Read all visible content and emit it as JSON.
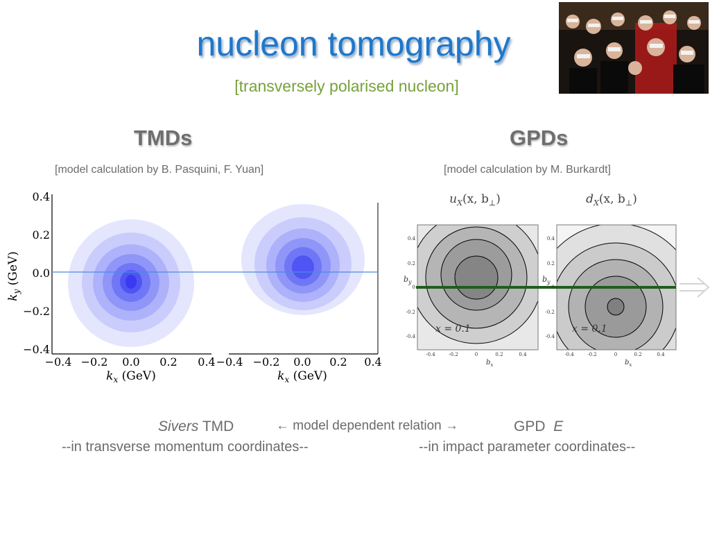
{
  "slide": {
    "title": "nucleon tomography",
    "subtitle": "[transversely polarised nucleon]"
  },
  "tmd": {
    "heading": "TMDs",
    "caption": "[model calculation by B. Pasquini, F. Yuan]",
    "ylabel_k": "k",
    "ylabel_sub": "y",
    "ylabel_unit": " (GeV)",
    "xlabel_k": "k",
    "xlabel_sub": "x",
    "xlabel_unit": " (GeV)",
    "yticks": [
      "0.4",
      "0.2",
      "0.0",
      "−0.2",
      "−0.4"
    ],
    "xticks": [
      "−0.4",
      "−0.2",
      "0.0",
      "0.2",
      "0.4"
    ]
  },
  "gpd": {
    "heading": "GPDs",
    "caption": "[model calculation by M. Burkardt]",
    "panel_u_label": "u",
    "panel_u_sub": "X",
    "panel_u_arg": "(x, b",
    "panel_d_label": "d",
    "panel_d_sub": "X",
    "panel_d_arg": "(x, b",
    "perp": "⊥",
    "close": ")",
    "x_annot": "x = 0.1",
    "by_label": "b",
    "by_sub": "y",
    "bx_label": "b",
    "bx_sub": "x",
    "yticks": [
      "0.4",
      "0.2",
      "0",
      "-0.2",
      "-0.4"
    ],
    "xticks": [
      "-0.4",
      "-0.2",
      "0",
      "0.2",
      "0.4"
    ]
  },
  "bottom": {
    "sivers_italic": "Sivers",
    "sivers_rest": " TMD",
    "relation": "← model dependent relation →",
    "gpd_label": "GPD  ",
    "gpd_E": "E",
    "tmd_coords": "--in transverse momentum coordinates--",
    "gpd_coords": "--in impact parameter coordinates--"
  },
  "icons": {
    "arrow": "outline-right-arrow-icon",
    "photo": "3d-glasses-audience-photo"
  },
  "colors": {
    "title": "#1f77c9",
    "subtitle": "#77a13a",
    "contour_blue": "#3a3af5",
    "gpd_cut_line": "#1f5e1a"
  }
}
